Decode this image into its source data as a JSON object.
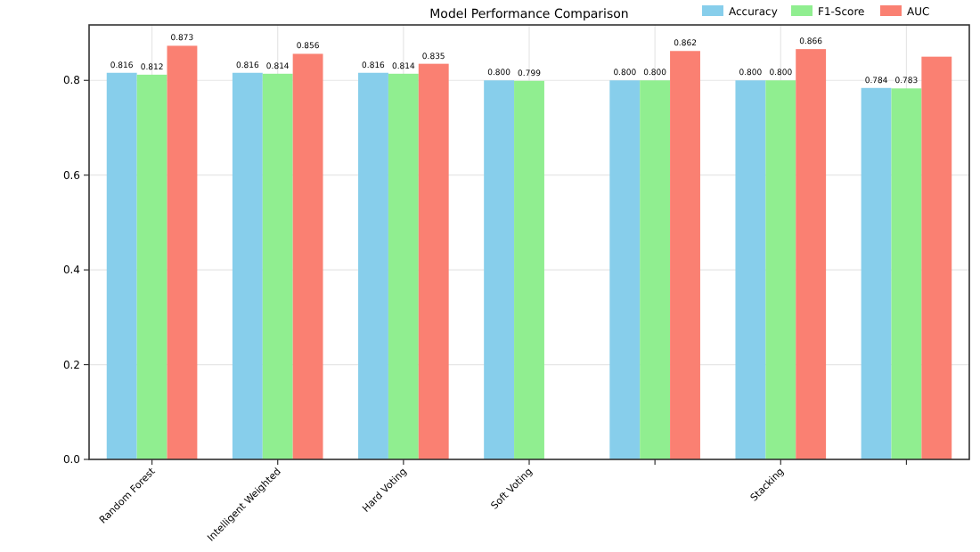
{
  "chart_data": {
    "type": "bar",
    "title": "Model Performance Comparison",
    "categories": [
      "Random Forest",
      "Intelligent Weighted",
      "Hard Voting",
      "Soft Voting",
      null,
      "Stacking",
      null
    ],
    "series": [
      {
        "name": "Accuracy",
        "color": "#87ceeb",
        "values": [
          0.816,
          0.816,
          0.816,
          0.8,
          0.8,
          0.8,
          0.784
        ],
        "value_labels": [
          "0.816",
          "0.816",
          "0.816",
          "0.800",
          "0.800",
          "0.800",
          "0.784"
        ]
      },
      {
        "name": "F1-Score",
        "color": "#90ee90",
        "values": [
          0.812,
          0.814,
          0.814,
          0.799,
          0.8,
          0.8,
          0.783
        ],
        "value_labels": [
          "0.812",
          "0.814",
          "0.814",
          "0.799",
          "0.800",
          "0.800",
          "0.783"
        ]
      },
      {
        "name": "AUC",
        "color": "#fa8072",
        "values": [
          0.873,
          0.856,
          0.835,
          null,
          0.862,
          0.866,
          0.85
        ],
        "value_labels": [
          "0.873",
          "0.856",
          "0.835",
          null,
          "0.862",
          "0.866",
          null
        ]
      }
    ],
    "ylim": [
      0,
      0.917
    ],
    "yticks": [
      {
        "value": 0,
        "label": "0.0"
      },
      {
        "value": 0.2,
        "label": "0.2"
      },
      {
        "value": 0.4,
        "label": "0.4"
      },
      {
        "value": 0.6,
        "label": "0.6"
      },
      {
        "value": 0.8,
        "label": "0.8"
      }
    ],
    "grid": true,
    "legend": "top right"
  }
}
